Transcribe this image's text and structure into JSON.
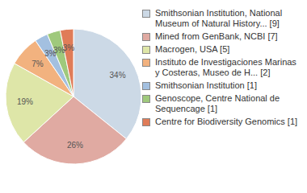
{
  "chart_data": {
    "type": "pie",
    "categories": [
      "Smithsonian Institution, National Museum of Natural History... [9]",
      "Mined from GenBank, NCBI [7]",
      "Macrogen, USA [5]",
      "Instituto de Investigaciones Marinas y Costeras, Museo de H... [2]",
      "Smithsonian Institution [1]",
      "Genoscope, Centre National de Sequencage [1]",
      "Centre for Biodiversity Genomics [1]"
    ],
    "values": [
      34,
      26,
      19,
      7,
      3,
      3,
      3
    ],
    "value_labels": [
      "34%",
      "26%",
      "19%",
      "7%",
      "3%",
      "3%",
      "3%"
    ],
    "colors": [
      "#ccd9e6",
      "#e0aaa2",
      "#dee6a8",
      "#f2b27f",
      "#a3c0e0",
      "#9fc97c",
      "#e07c58"
    ],
    "data_labels": true,
    "legend": "right"
  }
}
